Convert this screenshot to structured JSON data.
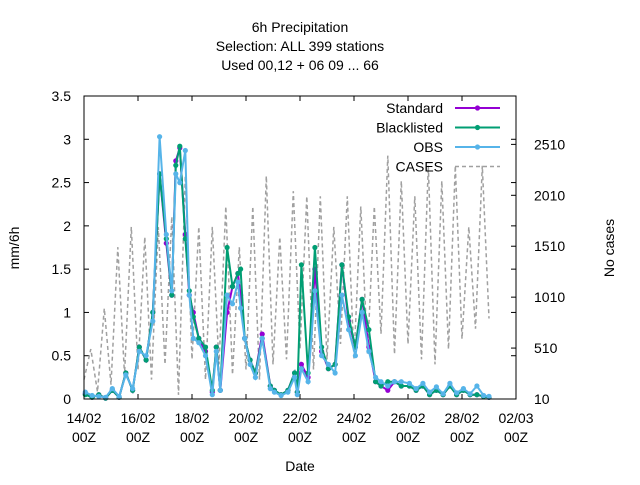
{
  "colors": {
    "standard": "#9400d3",
    "blacklisted": "#009e73",
    "obs": "#56b4e9",
    "cases": "#a0a0a0"
  },
  "chart_data": {
    "type": "line",
    "title_lines": [
      "6h Precipitation",
      "Selection: ALL     399 stations",
      "Used  00,12  + 06 09 ... 66"
    ],
    "xlabel": "Date",
    "ylabel": "mm/6h",
    "y2label": "No cases",
    "x_tick_labels": [
      [
        "14/02",
        "00Z"
      ],
      [
        "16/02",
        "00Z"
      ],
      [
        "18/02",
        "00Z"
      ],
      [
        "20/02",
        "00Z"
      ],
      [
        "22/02",
        "00Z"
      ],
      [
        "24/02",
        "00Z"
      ],
      [
        "26/02",
        "00Z"
      ],
      [
        "28/02",
        "00Z"
      ],
      [
        "02/03",
        "00Z"
      ]
    ],
    "y_ticks": [
      "0",
      "0.5",
      "1",
      "1.5",
      "2",
      "2.5",
      "3",
      "3.5"
    ],
    "y2_ticks": [
      "10",
      "510",
      "1010",
      "1510",
      "2010",
      "2510"
    ],
    "ylim": [
      0,
      3.5
    ],
    "y2lim": [
      10,
      2985
    ],
    "xlim_days": [
      0,
      16
    ],
    "legend": [
      "Standard",
      "Blacklisted",
      "OBS",
      "CASES"
    ],
    "legend_position": "top-right",
    "series": [
      {
        "name": "Standard",
        "x_days": [
          0.05,
          0.3,
          0.55,
          0.8,
          1.05,
          1.3,
          1.55,
          1.8,
          2.05,
          2.3,
          2.55,
          2.8,
          3.05,
          3.25,
          3.4,
          3.55,
          3.75,
          3.9,
          4.05,
          4.25,
          4.5,
          4.75,
          4.9,
          5.05,
          5.3,
          5.5,
          5.7,
          5.8,
          5.95,
          6.15,
          6.35,
          6.6,
          6.9,
          7.05,
          7.3,
          7.55,
          7.8,
          7.9,
          8.05,
          8.3,
          8.55,
          8.8,
          9.05,
          9.3,
          9.55,
          9.8,
          10.05,
          10.3,
          10.55,
          10.8,
          11.0,
          11.25,
          11.5,
          11.75,
          12.05,
          12.3,
          12.55,
          12.8,
          13.05,
          13.3,
          13.55,
          13.8,
          14.05,
          14.3,
          14.55,
          14.8,
          15.0
        ],
        "values": [
          0.06,
          0.02,
          0.05,
          0.01,
          0.1,
          0.02,
          0.3,
          0.1,
          0.6,
          0.45,
          1.0,
          2.6,
          1.8,
          1.2,
          2.75,
          2.9,
          1.9,
          1.2,
          1.0,
          0.7,
          0.55,
          0.08,
          0.6,
          0.1,
          1.0,
          1.3,
          1.45,
          1.2,
          0.7,
          0.45,
          0.3,
          0.75,
          0.15,
          0.1,
          0.05,
          0.1,
          0.3,
          0.08,
          0.4,
          0.25,
          1.5,
          0.55,
          0.35,
          0.4,
          1.55,
          0.9,
          0.6,
          1.15,
          0.6,
          0.2,
          0.15,
          0.1,
          0.2,
          0.15,
          0.15,
          0.1,
          0.15,
          0.05,
          0.1,
          0.05,
          0.15,
          0.05,
          0.1,
          0.05,
          0.05,
          0.03,
          0.02
        ]
      },
      {
        "name": "Blacklisted",
        "x_days": [
          0.05,
          0.3,
          0.55,
          0.8,
          1.05,
          1.3,
          1.55,
          1.8,
          2.05,
          2.3,
          2.55,
          2.8,
          3.05,
          3.25,
          3.4,
          3.55,
          3.75,
          3.9,
          4.05,
          4.25,
          4.5,
          4.75,
          4.9,
          5.05,
          5.3,
          5.5,
          5.7,
          5.8,
          5.95,
          6.15,
          6.35,
          6.6,
          6.9,
          7.05,
          7.3,
          7.55,
          7.8,
          7.9,
          8.05,
          8.3,
          8.55,
          8.8,
          9.05,
          9.3,
          9.55,
          9.8,
          10.05,
          10.3,
          10.55,
          10.8,
          11.0,
          11.25,
          11.5,
          11.75,
          12.05,
          12.3,
          12.55,
          12.8,
          13.05,
          13.3,
          13.55,
          13.8,
          14.05,
          14.3,
          14.55,
          14.8,
          15.0
        ],
        "values": [
          0.05,
          0.02,
          0.05,
          0.01,
          0.1,
          0.02,
          0.3,
          0.1,
          0.6,
          0.45,
          1.0,
          2.6,
          1.85,
          1.2,
          2.7,
          2.92,
          1.85,
          1.25,
          0.95,
          0.7,
          0.6,
          0.1,
          0.6,
          0.1,
          1.75,
          1.3,
          1.45,
          1.5,
          0.7,
          0.45,
          0.3,
          0.7,
          0.15,
          0.1,
          0.05,
          0.1,
          0.3,
          0.08,
          1.55,
          0.3,
          1.75,
          0.6,
          0.35,
          0.4,
          1.55,
          0.95,
          0.6,
          1.15,
          0.8,
          0.2,
          0.15,
          0.2,
          0.2,
          0.15,
          0.15,
          0.1,
          0.15,
          0.05,
          0.1,
          0.05,
          0.15,
          0.05,
          0.1,
          0.05,
          0.05,
          0.03,
          0.02
        ]
      },
      {
        "name": "OBS",
        "x_days": [
          0.05,
          0.3,
          0.55,
          0.8,
          1.05,
          1.3,
          1.55,
          1.8,
          2.05,
          2.3,
          2.55,
          2.8,
          3.05,
          3.25,
          3.4,
          3.55,
          3.75,
          3.9,
          4.05,
          4.25,
          4.5,
          4.75,
          4.9,
          5.05,
          5.3,
          5.5,
          5.7,
          5.8,
          5.95,
          6.15,
          6.35,
          6.6,
          6.9,
          7.05,
          7.3,
          7.55,
          7.8,
          7.9,
          8.05,
          8.3,
          8.55,
          8.8,
          9.05,
          9.3,
          9.55,
          9.8,
          10.05,
          10.3,
          10.55,
          10.8,
          11.0,
          11.25,
          11.5,
          11.75,
          12.05,
          12.3,
          12.55,
          12.8,
          13.05,
          13.3,
          13.55,
          13.8,
          14.05,
          14.3,
          14.55,
          14.8,
          15.0
        ],
        "values": [
          0.08,
          0.04,
          0.03,
          0.02,
          0.12,
          0.03,
          0.28,
          0.12,
          0.55,
          0.5,
          0.9,
          3.03,
          1.9,
          1.25,
          2.6,
          2.5,
          2.87,
          1.2,
          0.7,
          0.65,
          0.5,
          0.05,
          0.55,
          0.1,
          1.2,
          1.1,
          1.35,
          1.05,
          0.7,
          0.4,
          0.25,
          0.7,
          0.12,
          0.08,
          0.04,
          0.08,
          0.25,
          0.05,
          0.35,
          0.2,
          1.25,
          0.5,
          0.4,
          0.3,
          1.2,
          0.8,
          0.5,
          1.0,
          0.55,
          0.25,
          0.2,
          0.15,
          0.2,
          0.2,
          0.18,
          0.12,
          0.18,
          0.08,
          0.14,
          0.06,
          0.18,
          0.07,
          0.12,
          0.06,
          0.15,
          0.04,
          0.03
        ]
      },
      {
        "name": "CASES",
        "x_days": [
          0.0,
          0.25,
          0.5,
          0.75,
          1.0,
          1.25,
          1.5,
          1.75,
          2.0,
          2.25,
          2.5,
          2.75,
          3.0,
          3.25,
          3.5,
          3.75,
          4.0,
          4.25,
          4.5,
          4.75,
          5.0,
          5.25,
          5.5,
          5.75,
          6.0,
          6.25,
          6.5,
          6.75,
          7.0,
          7.25,
          7.5,
          7.75,
          8.0,
          8.25,
          8.5,
          8.75,
          9.0,
          9.25,
          9.5,
          9.75,
          10.0,
          10.25,
          10.5,
          10.75,
          11.0,
          11.25,
          11.5,
          11.75,
          12.0,
          12.25,
          12.5,
          12.75,
          13.0,
          13.25,
          13.5,
          13.75,
          14.0,
          14.25,
          14.5,
          14.75,
          15.0
        ],
        "values": [
          200,
          500,
          80,
          900,
          150,
          1500,
          250,
          1700,
          300,
          1600,
          200,
          1700,
          350,
          1800,
          50,
          2200,
          400,
          1700,
          200,
          1700,
          350,
          1900,
          250,
          1500,
          300,
          1900,
          200,
          2200,
          350,
          1600,
          400,
          2050,
          500,
          2000,
          300,
          2000,
          400,
          1700,
          550,
          2000,
          400,
          1900,
          450,
          1900,
          650,
          2400,
          450,
          2150,
          550,
          2000,
          400,
          2300,
          350,
          2150,
          500,
          2300,
          600,
          1700,
          700,
          2300,
          800
        ]
      }
    ]
  }
}
